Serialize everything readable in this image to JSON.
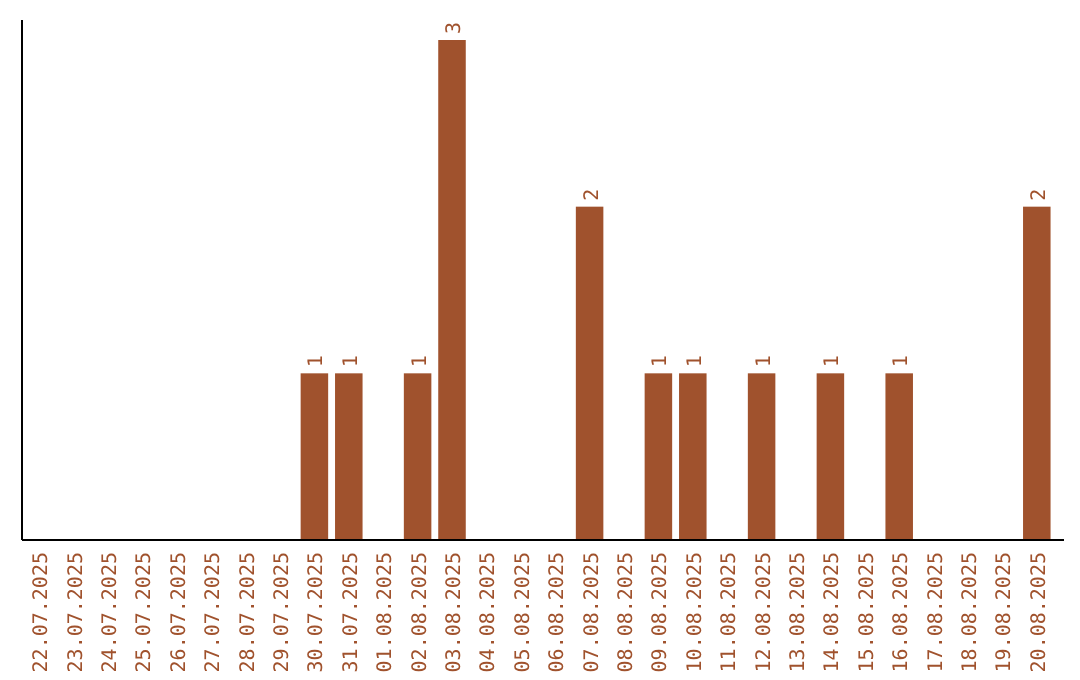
{
  "chart_data": {
    "type": "bar",
    "categories": [
      "22.07.2025",
      "23.07.2025",
      "24.07.2025",
      "25.07.2025",
      "26.07.2025",
      "27.07.2025",
      "28.07.2025",
      "29.07.2025",
      "30.07.2025",
      "31.07.2025",
      "01.08.2025",
      "02.08.2025",
      "03.08.2025",
      "04.08.2025",
      "05.08.2025",
      "06.08.2025",
      "07.08.2025",
      "08.08.2025",
      "09.08.2025",
      "10.08.2025",
      "11.08.2025",
      "12.08.2025",
      "13.08.2025",
      "14.08.2025",
      "15.08.2025",
      "16.08.2025",
      "17.08.2025",
      "18.08.2025",
      "19.08.2025",
      "20.08.2025"
    ],
    "values": [
      0,
      0,
      0,
      0,
      0,
      0,
      0,
      0,
      1,
      1,
      0,
      1,
      3,
      0,
      0,
      0,
      2,
      0,
      1,
      1,
      0,
      1,
      0,
      1,
      0,
      1,
      0,
      0,
      0,
      2
    ],
    "value_labels": [
      null,
      null,
      null,
      null,
      null,
      null,
      null,
      null,
      "1",
      "1",
      null,
      "1",
      "3",
      null,
      null,
      null,
      "2",
      null,
      "1",
      "1",
      null,
      "1",
      null,
      "1",
      null,
      "1",
      null,
      null,
      null,
      "2"
    ],
    "color": "#a0522d"
  }
}
